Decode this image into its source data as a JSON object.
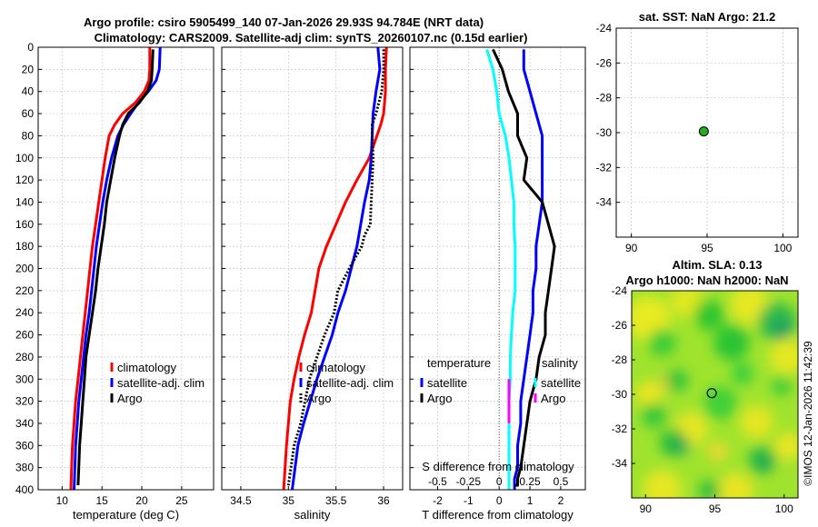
{
  "title": {
    "line1": "Argo profile: csiro 5905499_140 07-Jan-2026 29.93S 94.784E (NRT data)",
    "line2": "Climatology: CARS2009. Satellite-adj clim: synTS_20260107.nc (0.15d earlier)"
  },
  "credit": "©IMOS 12-Jan-2026 11:42:39",
  "colors": {
    "climatology": "#ff0000",
    "satellite": "#0000ff",
    "argo": "#000000",
    "salinity_satellite": "#00ffff",
    "salinity_argo": "#ff00ff",
    "grid": "#c8c8c8",
    "dot": "#22aa22"
  },
  "chart_data": [
    {
      "id": "temperature",
      "type": "line",
      "xlabel": "temperature (deg C)",
      "ylabel": "",
      "xlim": [
        7,
        29
      ],
      "ylim": [
        400,
        0
      ],
      "xticks": [
        10,
        15,
        20,
        25
      ],
      "xtick_labels": [
        "10",
        "15",
        "20",
        "25"
      ],
      "yticks": [
        0,
        20,
        40,
        60,
        80,
        100,
        120,
        140,
        160,
        180,
        200,
        220,
        240,
        260,
        280,
        300,
        320,
        340,
        360,
        380,
        400
      ],
      "ytick_labels": [
        "0",
        "20",
        "40",
        "60",
        "80",
        "100",
        "120",
        "140",
        "160",
        "180",
        "200",
        "220",
        "240",
        "260",
        "280",
        "300",
        "320",
        "340",
        "360",
        "380",
        "400"
      ],
      "grid": true,
      "legend": [
        "climatology",
        "satellite-adj. clim",
        "Argo"
      ],
      "series": [
        {
          "name": "climatology",
          "x": [
            21.0,
            21.0,
            20.9,
            20.3,
            19.2,
            17.6,
            16.6,
            15.9,
            15.4,
            15.0,
            14.6,
            14.2,
            13.8,
            13.5,
            13.2,
            12.9,
            12.6,
            12.3,
            12.0,
            11.7,
            11.5,
            11.3,
            11.2,
            11.1
          ],
          "y": [
            0,
            20,
            30,
            40,
            50,
            60,
            70,
            80,
            100,
            120,
            140,
            160,
            180,
            200,
            220,
            240,
            260,
            280,
            300,
            320,
            340,
            360,
            380,
            400
          ]
        },
        {
          "name": "satellite-adj. clim",
          "x": [
            22.3,
            22.2,
            21.8,
            20.8,
            19.6,
            18.6,
            17.7,
            17.0,
            16.2,
            15.6,
            15.1,
            14.7,
            14.3,
            14.0,
            13.7,
            13.4,
            13.0,
            12.7,
            12.4,
            12.1,
            11.9,
            11.7,
            11.6,
            11.5
          ],
          "y": [
            0,
            20,
            30,
            40,
            50,
            60,
            70,
            80,
            100,
            120,
            140,
            160,
            180,
            200,
            220,
            240,
            260,
            280,
            300,
            320,
            340,
            360,
            380,
            400
          ]
        },
        {
          "name": "Argo",
          "x": [
            21.4,
            21.3,
            21.2,
            20.7,
            19.7,
            18.3,
            17.6,
            17.2,
            16.6,
            16.1,
            15.6,
            15.3,
            14.9,
            14.5,
            14.2,
            13.8,
            13.4,
            13.0,
            12.8,
            12.6,
            12.4,
            12.2,
            12.1,
            12.0
          ],
          "y": [
            2,
            20,
            30,
            40,
            50,
            60,
            70,
            80,
            100,
            120,
            140,
            160,
            180,
            200,
            220,
            240,
            260,
            280,
            300,
            320,
            340,
            360,
            380,
            396
          ]
        }
      ]
    },
    {
      "id": "salinity",
      "type": "line",
      "xlabel": "salinity",
      "xlim": [
        34.3,
        36.2
      ],
      "ylim": [
        400,
        0
      ],
      "xticks": [
        34.5,
        35,
        35.5,
        36
      ],
      "xtick_labels": [
        "34.5",
        "35",
        "35.5",
        "36"
      ],
      "grid": true,
      "legend": [
        "climatology",
        "satellite-adj. clim",
        "Argo"
      ],
      "series": [
        {
          "name": "climatology",
          "x": [
            36.03,
            36.02,
            36.02,
            36.0,
            35.97,
            35.93,
            35.85,
            35.72,
            35.6,
            35.5,
            35.4,
            35.32,
            35.24,
            35.17,
            35.11,
            35.06,
            35.02,
            34.98,
            34.95
          ],
          "y": [
            0,
            20,
            40,
            60,
            70,
            80,
            100,
            120,
            140,
            160,
            180,
            200,
            240,
            260,
            280,
            300,
            320,
            360,
            400
          ]
        },
        {
          "name": "satellite-adj. clim",
          "x": [
            35.94,
            35.96,
            35.92,
            35.89,
            35.88,
            35.87,
            35.85,
            35.8,
            35.76,
            35.72,
            35.66,
            35.6,
            35.52,
            35.46,
            35.38,
            35.3,
            35.23,
            35.16,
            35.1,
            35.04
          ],
          "y": [
            0,
            20,
            40,
            60,
            80,
            100,
            120,
            140,
            160,
            180,
            200,
            220,
            240,
            260,
            280,
            300,
            320,
            340,
            360,
            400
          ]
        },
        {
          "name": "Argo",
          "x": [
            36.0,
            36.0,
            35.98,
            35.92,
            35.88,
            35.88,
            35.89,
            35.88,
            35.87,
            35.86,
            35.8,
            35.77,
            35.64,
            35.52,
            35.48,
            35.38,
            35.22,
            35.13,
            35.06,
            35.0
          ],
          "y": [
            2,
            20,
            40,
            60,
            70,
            80,
            100,
            120,
            140,
            160,
            170,
            180,
            200,
            220,
            240,
            260,
            300,
            340,
            360,
            396
          ]
        }
      ]
    },
    {
      "id": "difference",
      "type": "line",
      "xlabel": "T difference from climatology",
      "xlabel_top": "S difference from climatology",
      "xlim": [
        -2.9,
        2.8
      ],
      "ylim": [
        400,
        0
      ],
      "xticks": [
        -2,
        -1,
        0,
        1,
        2
      ],
      "xtick_labels": [
        "-2",
        "-1",
        "0",
        "1",
        "2"
      ],
      "xticks_s": [
        -0.5,
        -0.25,
        0,
        0.25,
        0.5
      ],
      "xtick_labels_s": [
        "-0.5",
        "-0.25",
        "0",
        "0.25",
        "0.5"
      ],
      "s_scale": 0.25,
      "grid": true,
      "legend_temperature": [
        "temperature",
        "satellite",
        "Argo"
      ],
      "legend_salinity": [
        "salinity",
        "satellite",
        "Argo"
      ],
      "series": [
        {
          "name": "T satellite",
          "x": [
            0.8,
            0.8,
            1.0,
            1.2,
            1.4,
            1.4,
            1.4,
            1.4,
            1.3,
            1.2,
            1.2,
            1.1,
            1.1,
            1.0,
            0.9,
            0.8,
            0.7,
            0.7,
            0.6,
            0.6,
            0.5,
            0.5,
            0.5
          ],
          "y": [
            2,
            20,
            40,
            60,
            80,
            100,
            120,
            140,
            160,
            180,
            200,
            220,
            240,
            260,
            280,
            300,
            320,
            340,
            360,
            380,
            390,
            400,
            400
          ]
        },
        {
          "name": "T Argo",
          "x": [
            -0.2,
            0.1,
            0.3,
            0.6,
            0.6,
            0.9,
            0.8,
            1.4,
            1.6,
            1.8,
            1.7,
            1.6,
            1.5,
            1.5,
            1.3,
            1.2,
            1.0,
            0.9,
            0.8,
            0.7,
            0.6,
            0.6,
            0.5
          ],
          "y": [
            2,
            20,
            40,
            60,
            80,
            100,
            120,
            140,
            160,
            180,
            200,
            220,
            240,
            260,
            280,
            300,
            320,
            340,
            360,
            380,
            390,
            396,
            396
          ]
        },
        {
          "name": "S satellite",
          "x": [
            -0.1,
            -0.05,
            -0.02,
            0.0,
            0.05,
            0.08,
            0.1,
            0.12,
            0.12,
            0.13,
            0.13,
            0.13,
            0.11,
            0.1,
            0.09,
            0.09,
            0.08,
            0.08,
            0.08,
            0.08,
            0.08
          ],
          "y": [
            2,
            20,
            40,
            60,
            80,
            100,
            120,
            140,
            160,
            180,
            200,
            220,
            240,
            260,
            280,
            300,
            320,
            340,
            360,
            380,
            400
          ]
        },
        {
          "name": "S Argo",
          "x": [
            0.08,
            0.08,
            0.08
          ],
          "y": [
            300,
            320,
            340
          ]
        }
      ]
    },
    {
      "id": "sst_map",
      "type": "scatter",
      "title": "sat. SST: NaN Argo: 21.2",
      "xlim": [
        89,
        101
      ],
      "ylim": [
        -24,
        -36
      ],
      "xticks": [
        90,
        95,
        100
      ],
      "xtick_labels": [
        "90",
        "95",
        "100"
      ],
      "yticks": [
        -24,
        -26,
        -28,
        -30,
        -32,
        -34
      ],
      "ytick_labels": [
        "-24",
        "-26",
        "-28",
        "-30",
        "-32",
        "-34"
      ],
      "points": [
        {
          "x": 94.78,
          "y": -29.93
        }
      ]
    },
    {
      "id": "sla_map",
      "type": "heatmap",
      "title_line1": "Altim. SLA: 0.13",
      "title_line2": "Argo h1000: NaN h2000: NaN",
      "xlim": [
        89,
        101
      ],
      "ylim": [
        -24,
        -36
      ],
      "xticks": [
        90,
        95,
        100
      ],
      "xtick_labels": [
        "90",
        "95",
        "100"
      ],
      "yticks": [
        -24,
        -26,
        -28,
        -30,
        -32,
        -34
      ],
      "ytick_labels": [
        "-24",
        "-26",
        "-28",
        "-30",
        "-32",
        "-34"
      ],
      "points": [
        {
          "x": 94.78,
          "y": -29.93
        }
      ]
    }
  ]
}
